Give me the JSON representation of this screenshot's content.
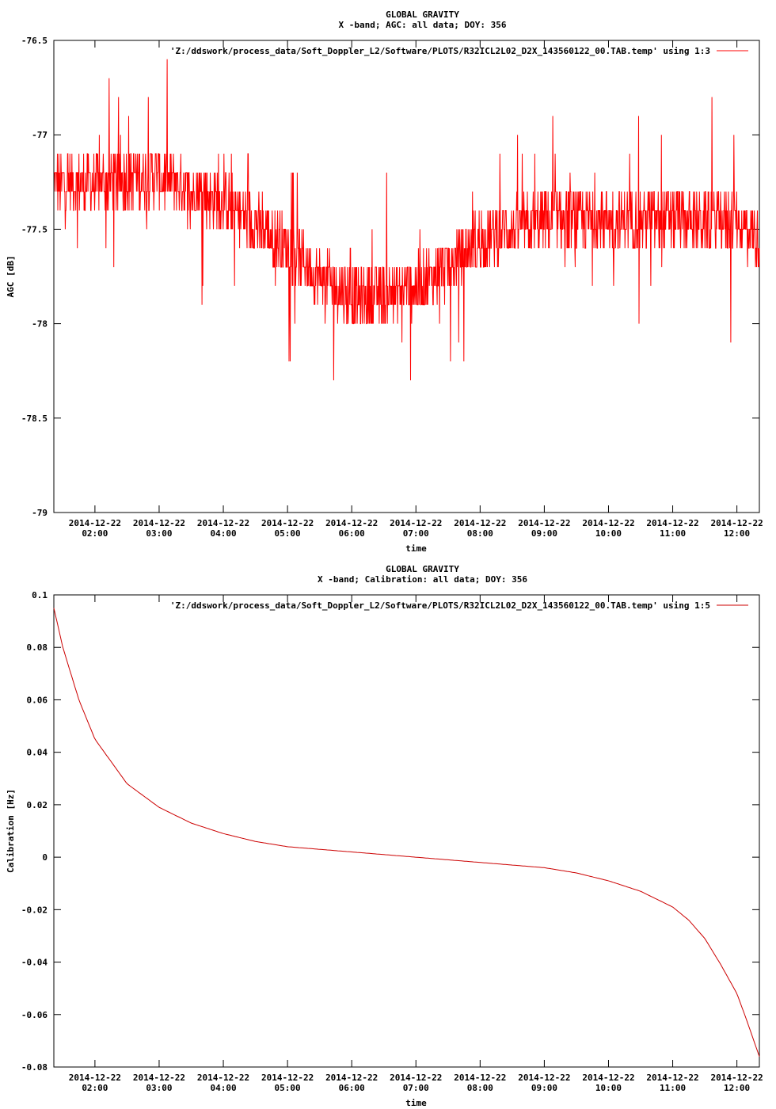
{
  "chart_data": [
    {
      "type": "line",
      "title": "GLOBAL GRAVITY",
      "subtitle": "X -band; AGC: all data; DOY: 356",
      "xlabel": "time",
      "ylabel": "AGC [dB]",
      "legend": "'Z:/ddswork/process_data/Soft_Doppler_L2/Software/PLOTS/R32ICL2L02_D2X_143560122_00.TAB.temp' using 1:3",
      "legend_position": "top-right",
      "series_color": "#ff0000",
      "ylim": [
        -79,
        -76.5
      ],
      "xlim": [
        1.36,
        12.35
      ],
      "yticks": [
        -76.5,
        -77,
        -77.5,
        -78,
        -78.5,
        -79
      ],
      "ytick_labels": [
        "-76.5",
        "-77",
        "-77.5",
        "-78",
        "-78.5",
        "-79"
      ],
      "xticks": [
        2,
        3,
        4,
        5,
        6,
        7,
        8,
        9,
        10,
        11,
        12
      ],
      "xtick_labels": [
        [
          "2014-12-22",
          "02:00"
        ],
        [
          "2014-12-22",
          "03:00"
        ],
        [
          "2014-12-22",
          "04:00"
        ],
        [
          "2014-12-22",
          "05:00"
        ],
        [
          "2014-12-22",
          "06:00"
        ],
        [
          "2014-12-22",
          "07:00"
        ],
        [
          "2014-12-22",
          "08:00"
        ],
        [
          "2014-12-22",
          "09:00"
        ],
        [
          "2014-12-22",
          "10:00"
        ],
        [
          "2014-12-22",
          "11:00"
        ],
        [
          "2014-12-22",
          "12:00"
        ]
      ],
      "trend": {
        "x": [
          1.36,
          2.0,
          3.0,
          4.0,
          5.0,
          5.5,
          6.0,
          6.5,
          7.0,
          7.5,
          8.0,
          9.0,
          10.0,
          11.0,
          12.0,
          12.35
        ],
        "y": [
          -77.25,
          -77.25,
          -77.22,
          -77.35,
          -77.6,
          -77.75,
          -77.85,
          -77.85,
          -77.8,
          -77.7,
          -77.55,
          -77.45,
          -77.45,
          -77.45,
          -77.45,
          -77.55
        ]
      },
      "noise_amplitude": 0.15,
      "spike_amplitude": 0.55,
      "samples": 1800
    },
    {
      "type": "line",
      "title": "GLOBAL GRAVITY",
      "subtitle": "X -band; Calibration: all data; DOY: 356",
      "xlabel": "time",
      "ylabel": "Calibration [Hz]",
      "legend": "'Z:/ddswork/process_data/Soft_Doppler_L2/Software/PLOTS/R32ICL2L02_D2X_143560122_00.TAB.temp' using 1:5",
      "legend_position": "top-right",
      "series_color": "#cc0000",
      "ylim": [
        -0.08,
        0.1
      ],
      "xlim": [
        1.36,
        12.35
      ],
      "yticks": [
        0.1,
        0.08,
        0.06,
        0.04,
        0.02,
        0,
        -0.02,
        -0.04,
        -0.06,
        -0.08
      ],
      "ytick_labels": [
        "0.1",
        "0.08",
        "0.06",
        "0.04",
        "0.02",
        "0",
        "-0.02",
        "-0.04",
        "-0.06",
        "-0.08"
      ],
      "xticks": [
        2,
        3,
        4,
        5,
        6,
        7,
        8,
        9,
        10,
        11,
        12
      ],
      "xtick_labels": [
        [
          "2014-12-22",
          "02:00"
        ],
        [
          "2014-12-22",
          "03:00"
        ],
        [
          "2014-12-22",
          "04:00"
        ],
        [
          "2014-12-22",
          "05:00"
        ],
        [
          "2014-12-22",
          "06:00"
        ],
        [
          "2014-12-22",
          "07:00"
        ],
        [
          "2014-12-22",
          "08:00"
        ],
        [
          "2014-12-22",
          "09:00"
        ],
        [
          "2014-12-22",
          "10:00"
        ],
        [
          "2014-12-22",
          "11:00"
        ],
        [
          "2014-12-22",
          "12:00"
        ]
      ],
      "series": {
        "x": [
          1.36,
          1.5,
          1.75,
          2.0,
          2.5,
          3.0,
          3.5,
          4.0,
          4.5,
          5.0,
          5.5,
          6.0,
          6.5,
          7.0,
          7.5,
          8.0,
          8.5,
          9.0,
          9.5,
          10.0,
          10.5,
          11.0,
          11.25,
          11.5,
          11.75,
          12.0,
          12.15,
          12.35
        ],
        "y": [
          0.095,
          0.08,
          0.06,
          0.045,
          0.028,
          0.019,
          0.013,
          0.009,
          0.006,
          0.004,
          0.003,
          0.002,
          0.001,
          0.0,
          -0.001,
          -0.002,
          -0.003,
          -0.004,
          -0.006,
          -0.009,
          -0.013,
          -0.019,
          -0.024,
          -0.031,
          -0.041,
          -0.052,
          -0.062,
          -0.076
        ]
      }
    }
  ]
}
